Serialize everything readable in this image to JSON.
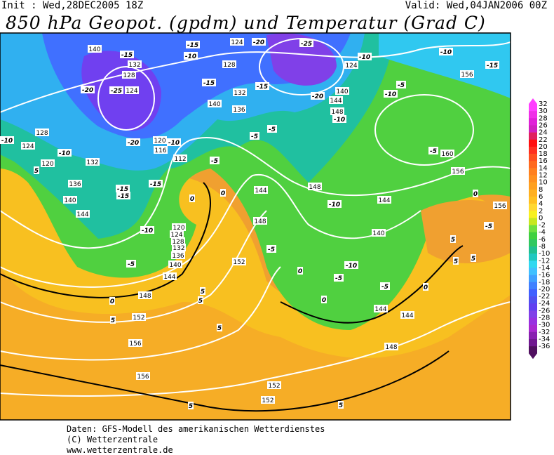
{
  "header": {
    "init": "Init : Wed,28DEC2005 18Z",
    "valid": "Valid: Wed,04JAN2006 00Z",
    "title": "850 hPa Geopot. (gpdm) und Temperatur (Grad C)"
  },
  "legend": {
    "labels": [
      "32",
      "30",
      "28",
      "26",
      "24",
      "22",
      "20",
      "18",
      "16",
      "14",
      "12",
      "10",
      "8",
      "6",
      "4",
      "2",
      "0",
      "-2",
      "-4",
      "-6",
      "-8",
      "-10",
      "-12",
      "-14",
      "-16",
      "-18",
      "-20",
      "-22",
      "-24",
      "-26",
      "-28",
      "-30",
      "-32",
      "-34",
      "-36"
    ],
    "colors": [
      "#ff40ff",
      "#f030e8",
      "#e020d8",
      "#d020c0",
      "#e02060",
      "#ff1010",
      "#ff3020",
      "#ff5020",
      "#ff6a20",
      "#ff8020",
      "#ff9020",
      "#ffa020",
      "#ffb020",
      "#ffc020",
      "#ffd830",
      "#f8f020",
      "#c8e820",
      "#70e040",
      "#40d040",
      "#30c860",
      "#20c090",
      "#20c8c0",
      "#30d8f0",
      "#40c0ff",
      "#40a0ff",
      "#4080ff",
      "#4060ff",
      "#5050f0",
      "#6040f0",
      "#8040e8",
      "#9830e0",
      "#a828d0",
      "#8820b0",
      "#701890",
      "#501060"
    ]
  },
  "map": {
    "geopotential_labels": [
      "140",
      "132",
      "128",
      "124",
      "128",
      "124",
      "120",
      "132",
      "136",
      "140",
      "144",
      "120",
      "116",
      "112",
      "120",
      "124",
      "128",
      "132",
      "136",
      "140",
      "144",
      "148",
      "152",
      "156",
      "156",
      "152",
      "152",
      "152",
      "144",
      "148",
      "148",
      "144",
      "140",
      "144",
      "144",
      "148",
      "160",
      "156",
      "156",
      "156",
      "128",
      "124",
      "124",
      "140",
      "144",
      "148",
      "132",
      "136",
      "140"
    ],
    "temperature_labels": [
      "-15",
      "-20",
      "-25",
      "-10",
      "-15",
      "-15",
      "-20",
      "-25",
      "-15",
      "-20",
      "-10",
      "-10",
      "-10",
      "-15",
      "-5",
      "-10",
      "-5",
      "-5",
      "-20",
      "-10",
      "-15",
      "-15",
      "-15",
      "-10",
      "-5",
      "-10",
      "-10",
      "0",
      "0",
      "-5",
      "-10",
      "-5",
      "0",
      "-10",
      "-5",
      "-5",
      "0",
      "0",
      "0",
      "5",
      "5",
      "5",
      "5",
      "5",
      "5",
      "5",
      "5",
      "5",
      "0",
      "-5",
      "-5",
      "5"
    ]
  },
  "footer": {
    "lines": [
      "Daten: GFS-Modell des amerikanischen Wetterdienstes",
      "(C) Wetterzentrale",
      "www.wetterzentrale.de"
    ]
  }
}
